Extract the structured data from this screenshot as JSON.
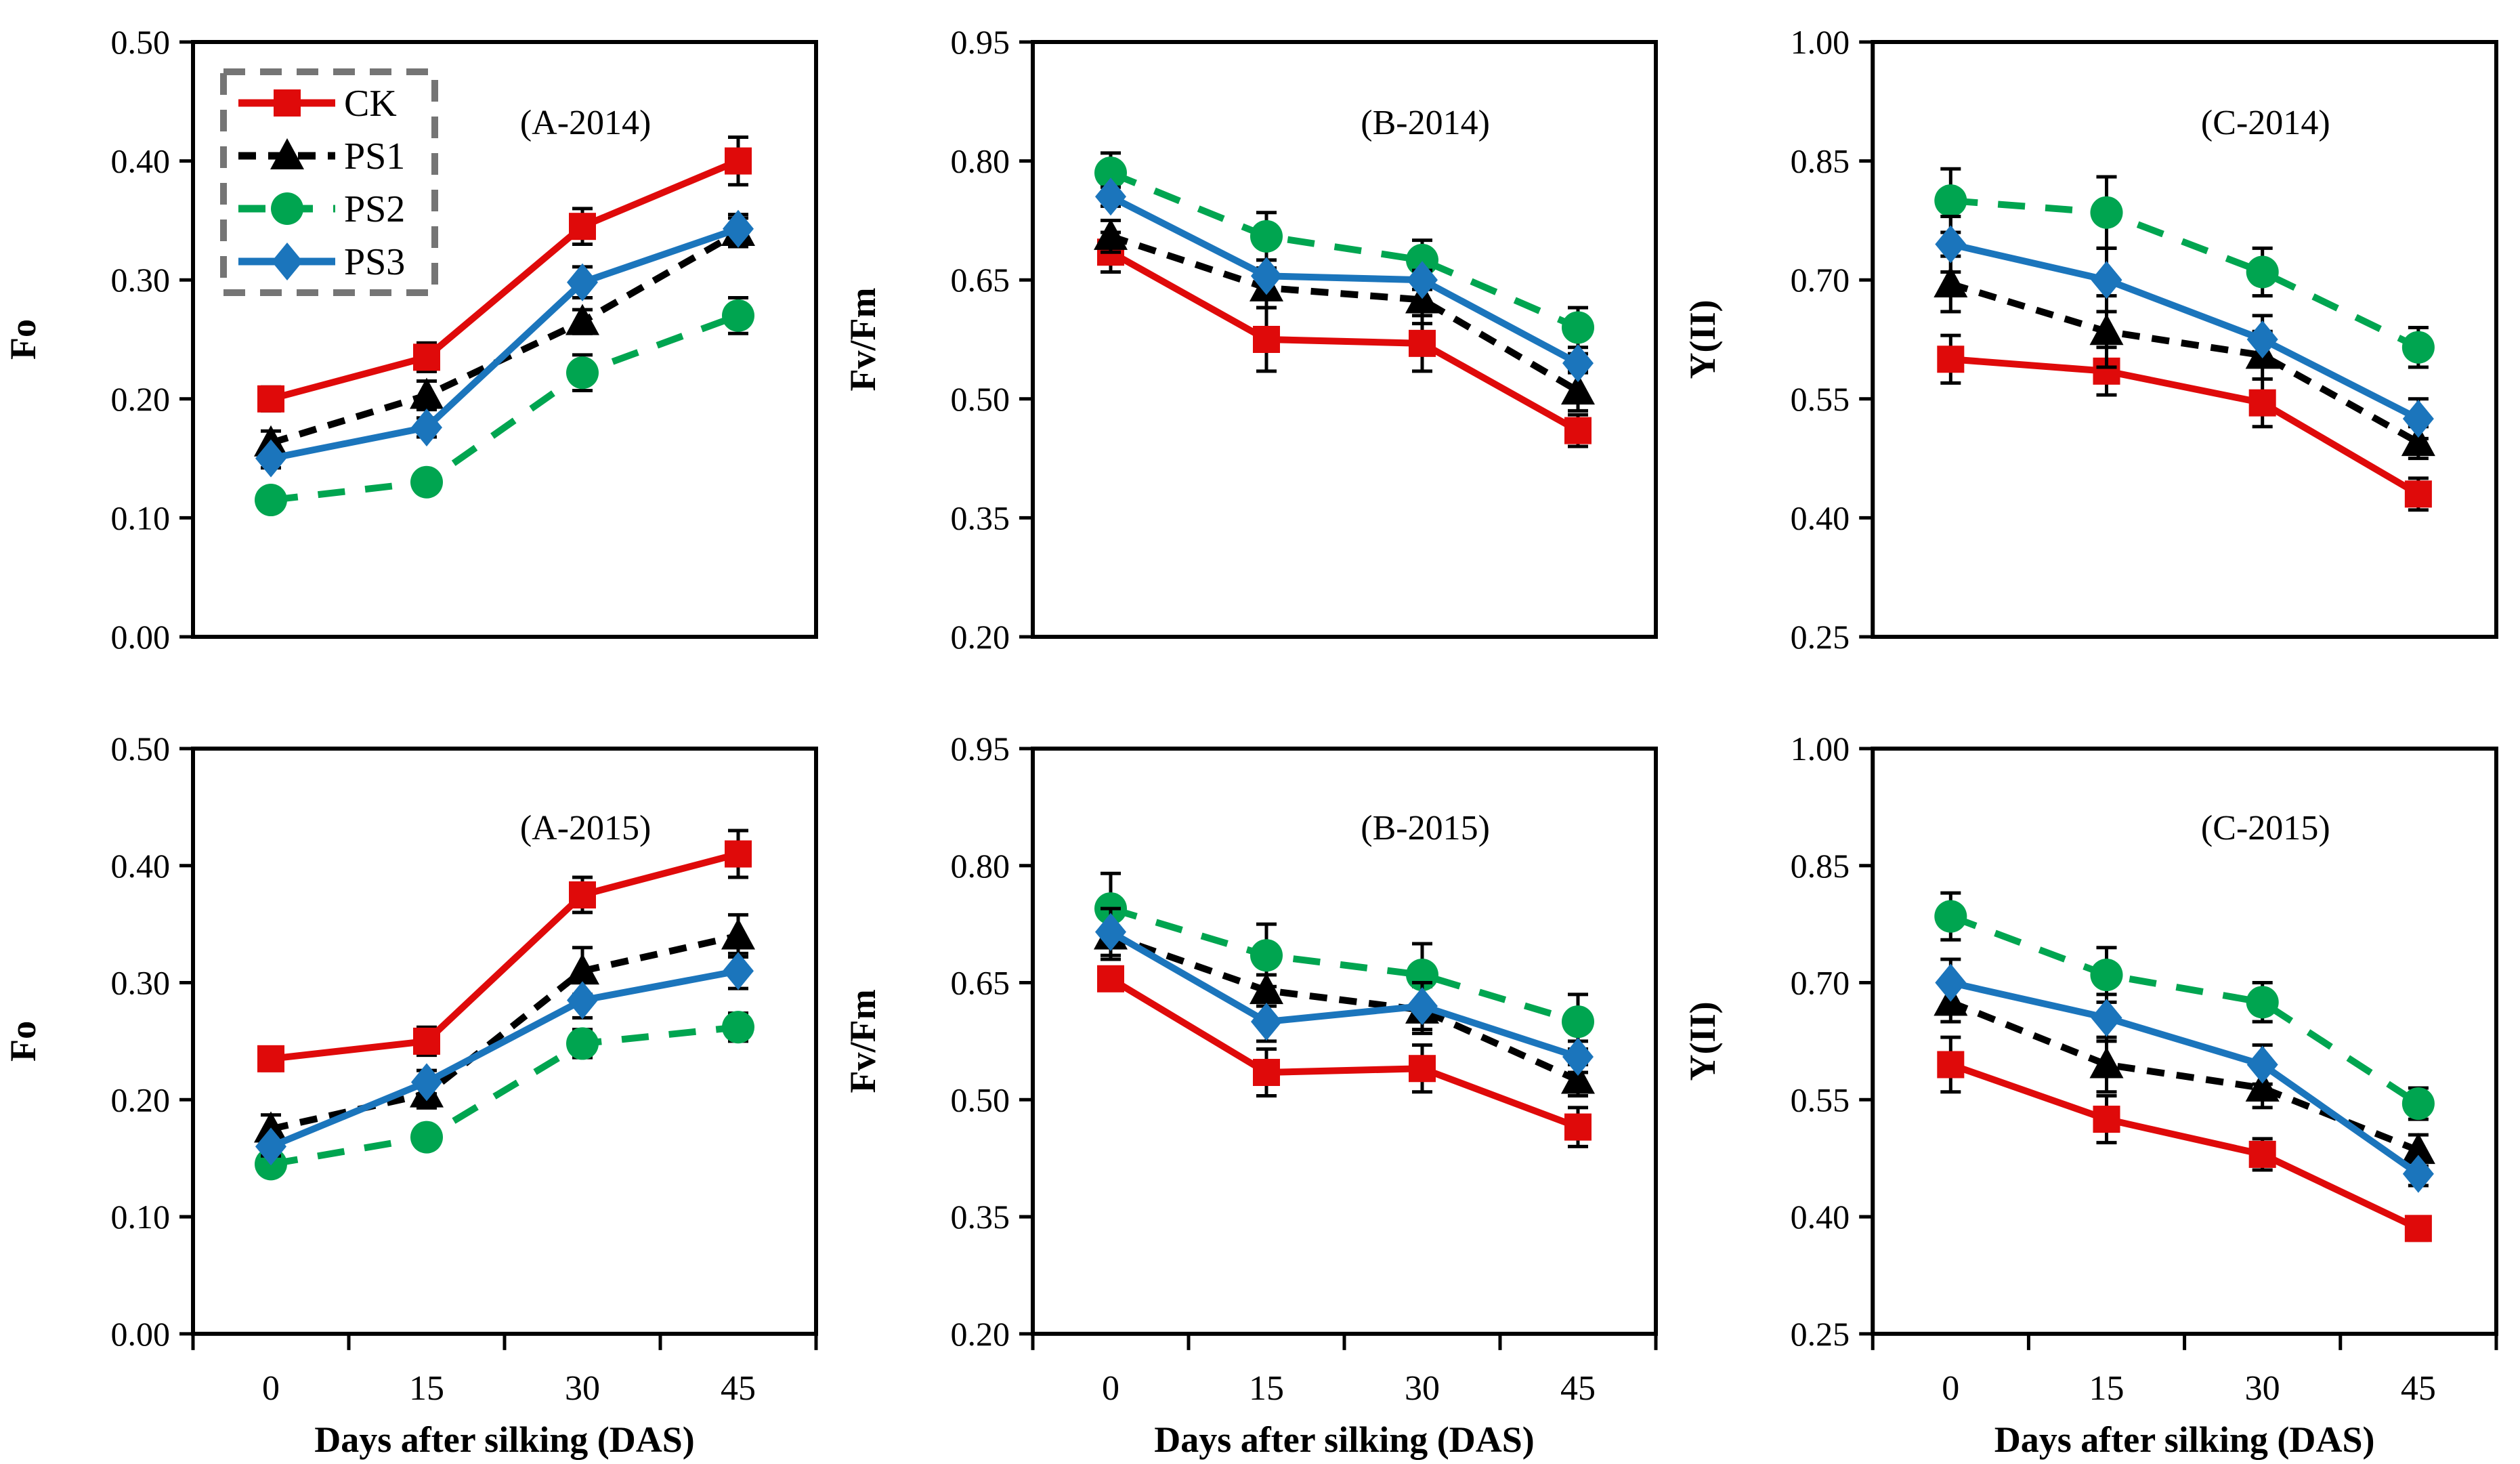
{
  "figure": {
    "x_axis_label": "Days after silking (DAS)",
    "x_tick_labels": [
      "0",
      "15",
      "30",
      "45"
    ],
    "background_color": "#ffffff",
    "axis_color": "#000000"
  },
  "legend": {
    "location": "inside-top-left-of-panel-A-2014",
    "border_color": "#757575",
    "border_style": "dashed",
    "items": [
      {
        "label": "CK",
        "color": "#df0a0a",
        "marker": "square",
        "dash": ""
      },
      {
        "label": "PS1",
        "color": "#000000",
        "marker": "triangle",
        "dash": "26 18"
      },
      {
        "label": "PS2",
        "color": "#00a550",
        "marker": "circle",
        "dash": "40 30"
      },
      {
        "label": "PS3",
        "color": "#1b75bc",
        "marker": "diamond",
        "dash": ""
      }
    ]
  },
  "chart_data": [
    {
      "type": "line",
      "title": "(A-2014)",
      "ylabel": "Fo",
      "xlabel": "Days after silking (DAS)",
      "row": "top",
      "show_x_tick_labels": false,
      "show_xlabel": false,
      "show_legend": true,
      "x": [
        0,
        15,
        30,
        45
      ],
      "ylim": [
        0.0,
        0.5
      ],
      "yticks": [
        0.0,
        0.1,
        0.2,
        0.3,
        0.4,
        0.5
      ],
      "ytick_labels": [
        "0.00",
        "0.10",
        "0.20",
        "0.30",
        "0.40",
        "0.50"
      ],
      "series": [
        {
          "name": "CK",
          "values": [
            0.2,
            0.235,
            0.345,
            0.4
          ],
          "errors": [
            0.01,
            0.012,
            0.015,
            0.02
          ]
        },
        {
          "name": "PS1",
          "values": [
            0.163,
            0.203,
            0.265,
            0.34
          ],
          "errors": [
            0.01,
            0.012,
            0.01,
            0.012
          ]
        },
        {
          "name": "PS2",
          "values": [
            0.115,
            0.13,
            0.222,
            0.27
          ],
          "errors": [
            0.006,
            0.008,
            0.015,
            0.015
          ]
        },
        {
          "name": "PS3",
          "values": [
            0.15,
            0.176,
            0.298,
            0.343
          ],
          "errors": [
            0.008,
            0.008,
            0.013,
            0.012
          ]
        }
      ]
    },
    {
      "type": "line",
      "title": "(B-2014)",
      "ylabel": "Fv/Fm",
      "xlabel": "Days after silking (DAS)",
      "row": "top",
      "show_x_tick_labels": false,
      "show_xlabel": false,
      "show_legend": false,
      "x": [
        0,
        15,
        30,
        45
      ],
      "ylim": [
        0.2,
        0.95
      ],
      "yticks": [
        0.2,
        0.35,
        0.5,
        0.65,
        0.8,
        0.95
      ],
      "ytick_labels": [
        "0.20",
        "0.35",
        "0.50",
        "0.65",
        "0.80",
        "0.95"
      ],
      "series": [
        {
          "name": "CK",
          "values": [
            0.685,
            0.575,
            0.57,
            0.46
          ],
          "errors": [
            0.025,
            0.04,
            0.035,
            0.02
          ]
        },
        {
          "name": "PS1",
          "values": [
            0.705,
            0.64,
            0.625,
            0.51
          ],
          "errors": [
            0.02,
            0.025,
            0.03,
            0.025
          ]
        },
        {
          "name": "PS2",
          "values": [
            0.785,
            0.705,
            0.675,
            0.59
          ],
          "errors": [
            0.025,
            0.03,
            0.025,
            0.025
          ]
        },
        {
          "name": "PS3",
          "values": [
            0.755,
            0.655,
            0.65,
            0.545
          ],
          "errors": [
            0.012,
            0.02,
            0.012,
            0.012
          ]
        }
      ]
    },
    {
      "type": "line",
      "title": "(C-2014)",
      "ylabel": "Y(II)",
      "xlabel": "Days after silking (DAS)",
      "row": "top",
      "show_x_tick_labels": false,
      "show_xlabel": false,
      "show_legend": false,
      "x": [
        0,
        15,
        30,
        45
      ],
      "ylim": [
        0.25,
        1.0
      ],
      "yticks": [
        0.25,
        0.4,
        0.55,
        0.7,
        0.85,
        1.0
      ],
      "ytick_labels": [
        "0.25",
        "0.40",
        "0.55",
        "0.70",
        "0.85",
        "1.00"
      ],
      "series": [
        {
          "name": "CK",
          "values": [
            0.6,
            0.585,
            0.545,
            0.43
          ],
          "errors": [
            0.03,
            0.03,
            0.03,
            0.02
          ]
        },
        {
          "name": "PS1",
          "values": [
            0.695,
            0.635,
            0.605,
            0.495
          ],
          "errors": [
            0.035,
            0.045,
            0.03,
            0.02
          ]
        },
        {
          "name": "PS2",
          "values": [
            0.8,
            0.785,
            0.71,
            0.615
          ],
          "errors": [
            0.04,
            0.045,
            0.03,
            0.025
          ]
        },
        {
          "name": "PS3",
          "values": [
            0.745,
            0.7,
            0.625,
            0.525
          ],
          "errors": [
            0.035,
            0.04,
            0.03,
            0.025
          ]
        }
      ]
    },
    {
      "type": "line",
      "title": "(A-2015)",
      "ylabel": "Fo",
      "xlabel": "Days after silking (DAS)",
      "row": "bottom",
      "show_x_tick_labels": true,
      "show_xlabel": true,
      "show_legend": false,
      "x": [
        0,
        15,
        30,
        45
      ],
      "ylim": [
        0.0,
        0.5
      ],
      "yticks": [
        0.0,
        0.1,
        0.2,
        0.3,
        0.4,
        0.5
      ],
      "ytick_labels": [
        "0.00",
        "0.10",
        "0.20",
        "0.30",
        "0.40",
        "0.50"
      ],
      "series": [
        {
          "name": "CK",
          "values": [
            0.235,
            0.25,
            0.375,
            0.41
          ],
          "errors": [
            0.01,
            0.012,
            0.015,
            0.02
          ]
        },
        {
          "name": "PS1",
          "values": [
            0.175,
            0.205,
            0.31,
            0.34
          ],
          "errors": [
            0.012,
            0.012,
            0.02,
            0.018
          ]
        },
        {
          "name": "PS2",
          "values": [
            0.145,
            0.168,
            0.248,
            0.262
          ],
          "errors": [
            0.008,
            0.008,
            0.012,
            0.012
          ]
        },
        {
          "name": "PS3",
          "values": [
            0.16,
            0.215,
            0.285,
            0.31
          ],
          "errors": [
            0.008,
            0.01,
            0.015,
            0.015
          ]
        }
      ]
    },
    {
      "type": "line",
      "title": "(B-2015)",
      "ylabel": "Fv/Fm",
      "xlabel": "Days after silking (DAS)",
      "row": "bottom",
      "show_x_tick_labels": true,
      "show_xlabel": true,
      "show_legend": false,
      "x": [
        0,
        15,
        30,
        45
      ],
      "ylim": [
        0.2,
        0.95
      ],
      "yticks": [
        0.2,
        0.35,
        0.5,
        0.65,
        0.8,
        0.95
      ],
      "ytick_labels": [
        "0.20",
        "0.35",
        "0.50",
        "0.65",
        "0.80",
        "0.95"
      ],
      "series": [
        {
          "name": "CK",
          "values": [
            0.655,
            0.535,
            0.54,
            0.465
          ],
          "errors": [
            0.015,
            0.03,
            0.03,
            0.025
          ]
        },
        {
          "name": "PS1",
          "values": [
            0.71,
            0.64,
            0.615,
            0.525
          ],
          "errors": [
            0.03,
            0.02,
            0.03,
            0.02
          ]
        },
        {
          "name": "PS2",
          "values": [
            0.745,
            0.685,
            0.66,
            0.6
          ],
          "errors": [
            0.045,
            0.04,
            0.04,
            0.035
          ]
        },
        {
          "name": "PS3",
          "values": [
            0.715,
            0.6,
            0.62,
            0.555
          ],
          "errors": [
            0.03,
            0.025,
            0.03,
            0.02
          ]
        }
      ]
    },
    {
      "type": "line",
      "title": "(C-2015)",
      "ylabel": "Y(II)",
      "xlabel": "Days after silking (DAS)",
      "row": "bottom",
      "show_x_tick_labels": true,
      "show_xlabel": true,
      "show_legend": false,
      "x": [
        0,
        15,
        30,
        45
      ],
      "ylim": [
        0.25,
        1.0
      ],
      "yticks": [
        0.25,
        0.4,
        0.55,
        0.7,
        0.85,
        1.0
      ],
      "ytick_labels": [
        "0.25",
        "0.40",
        "0.55",
        "0.70",
        "0.85",
        "1.00"
      ],
      "series": [
        {
          "name": "CK",
          "values": [
            0.595,
            0.525,
            0.48,
            0.385
          ],
          "errors": [
            0.035,
            0.03,
            0.02,
            0.015
          ]
        },
        {
          "name": "PS1",
          "values": [
            0.675,
            0.595,
            0.565,
            0.485
          ],
          "errors": [
            0.025,
            0.035,
            0.025,
            0.02
          ]
        },
        {
          "name": "PS2",
          "values": [
            0.785,
            0.71,
            0.675,
            0.545
          ],
          "errors": [
            0.03,
            0.035,
            0.025,
            0.02
          ]
        },
        {
          "name": "PS3",
          "values": [
            0.7,
            0.655,
            0.595,
            0.455
          ],
          "errors": [
            0.03,
            0.03,
            0.025,
            0.015
          ]
        }
      ]
    }
  ]
}
